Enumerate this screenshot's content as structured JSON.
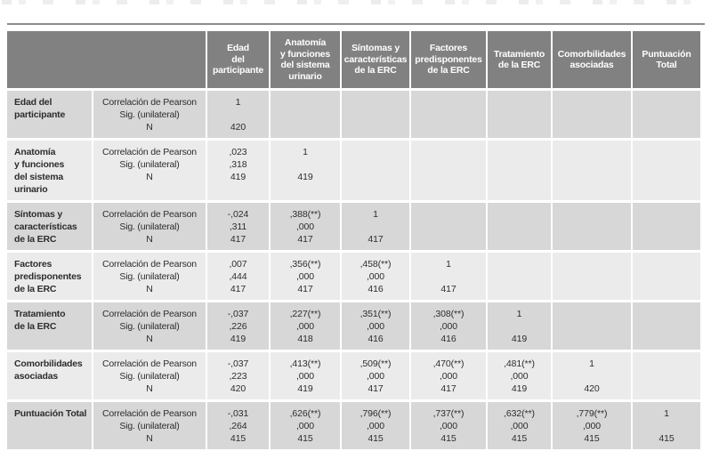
{
  "colors": {
    "header_bg": "#818181",
    "header_text": "#ffffff",
    "band_dark": "#d7d7d7",
    "band_light": "#ebebeb",
    "rule": "#8c8c8c",
    "bottom_bar": "#161616",
    "text": "#2d2d2d"
  },
  "table": {
    "corner_label": "",
    "col_headers": [
      "Edad\ndel\nparticipante",
      "Anatomía\ny funciones\ndel sistema\nurinario",
      "Síntomas y\ncaracterísticas\nde la ERC",
      "Factores\npredisponentes\nde la ERC",
      "Tratamiento\nde la ERC",
      "Comorbilidades\nasociadas",
      "Puntuación\nTotal"
    ],
    "stat_labels": [
      "Correlación de Pearson",
      "Sig. (unilateral)",
      "N"
    ],
    "rows": [
      {
        "label": "Edad del\nparticipante",
        "cells": [
          [
            "1",
            "",
            "420"
          ],
          [
            "",
            "",
            ""
          ],
          [
            "",
            "",
            ""
          ],
          [
            "",
            "",
            ""
          ],
          [
            "",
            "",
            ""
          ],
          [
            "",
            "",
            ""
          ],
          [
            "",
            "",
            ""
          ]
        ]
      },
      {
        "label": "Anatomía\ny funciones\ndel sistema\nurinario",
        "cells": [
          [
            ",023",
            ",318",
            "419"
          ],
          [
            "1",
            "",
            "419"
          ],
          [
            "",
            "",
            ""
          ],
          [
            "",
            "",
            ""
          ],
          [
            "",
            "",
            ""
          ],
          [
            "",
            "",
            ""
          ],
          [
            "",
            "",
            ""
          ]
        ]
      },
      {
        "label": "Síntomas y\ncaracterísticas\nde la ERC",
        "cells": [
          [
            "-,024",
            ",311",
            "417"
          ],
          [
            ",388(**)",
            ",000",
            "417"
          ],
          [
            "1",
            "",
            "417"
          ],
          [
            "",
            "",
            ""
          ],
          [
            "",
            "",
            ""
          ],
          [
            "",
            "",
            ""
          ],
          [
            "",
            "",
            ""
          ]
        ]
      },
      {
        "label": "Factores\npredisponentes\nde la ERC",
        "cells": [
          [
            ",007",
            ",444",
            "417"
          ],
          [
            ",356(**)",
            ",000",
            "417"
          ],
          [
            ",458(**)",
            ",000",
            "416"
          ],
          [
            "1",
            "",
            "417"
          ],
          [
            "",
            "",
            ""
          ],
          [
            "",
            "",
            ""
          ],
          [
            "",
            "",
            ""
          ]
        ]
      },
      {
        "label": "Tratamiento\nde la ERC",
        "cells": [
          [
            "-,037",
            ",226",
            "419"
          ],
          [
            ",227(**)",
            ",000",
            "418"
          ],
          [
            ",351(**)",
            ",000",
            "416"
          ],
          [
            ",308(**)",
            ",000",
            "416"
          ],
          [
            "1",
            "",
            "419"
          ],
          [
            "",
            "",
            ""
          ],
          [
            "",
            "",
            ""
          ]
        ]
      },
      {
        "label": "Comorbilidades\nasociadas",
        "cells": [
          [
            "-,037",
            ",223",
            "420"
          ],
          [
            ",413(**)",
            ",000",
            "419"
          ],
          [
            ",509(**)",
            ",000",
            "417"
          ],
          [
            ",470(**)",
            ",000",
            "417"
          ],
          [
            ",481(**)",
            ",000",
            "419"
          ],
          [
            "1",
            "",
            "420"
          ],
          [
            "",
            "",
            ""
          ]
        ]
      },
      {
        "label": "Puntuación Total",
        "cells": [
          [
            "-,031",
            ",264",
            "415"
          ],
          [
            ",626(**)",
            ",000",
            "415"
          ],
          [
            ",796(**)",
            ",000",
            "415"
          ],
          [
            ",737(**)",
            ",000",
            "415"
          ],
          [
            ",632(**)",
            ",000",
            "415"
          ],
          [
            ",779(**)",
            ",000",
            "415"
          ],
          [
            "1",
            "",
            "415"
          ]
        ]
      }
    ]
  }
}
